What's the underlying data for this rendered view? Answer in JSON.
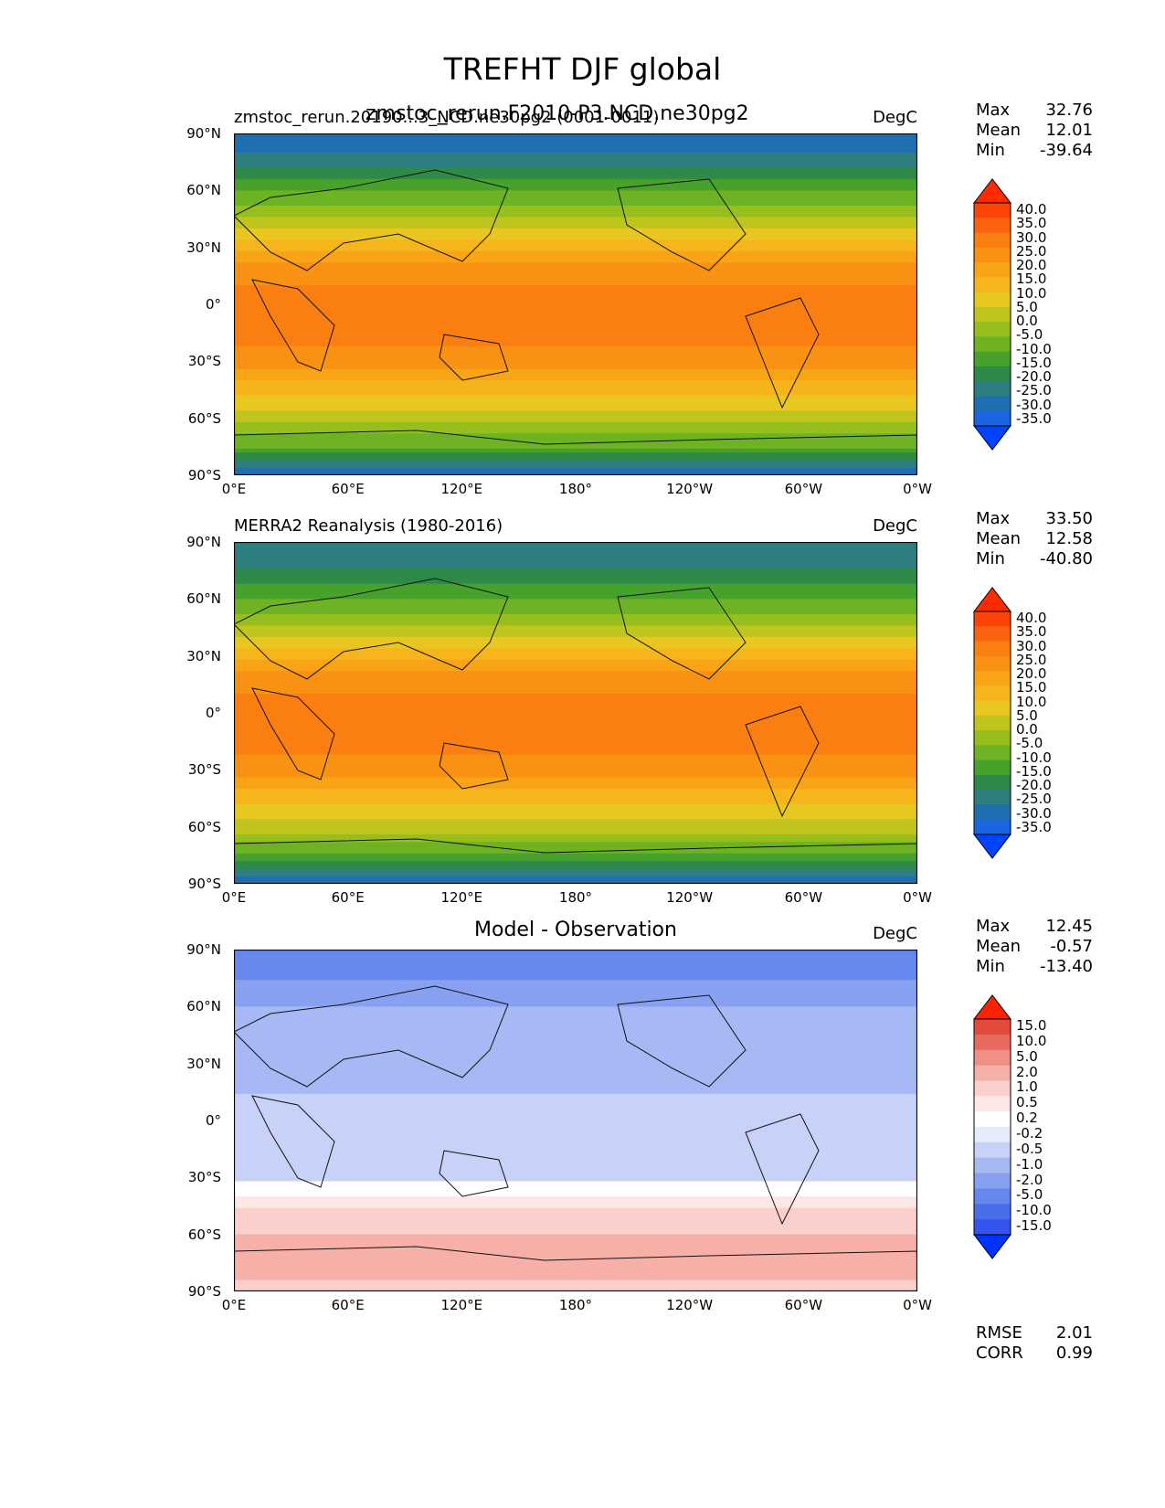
{
  "title": "TREFHT DJF global",
  "lat_ticks": [
    "90°N",
    "60°N",
    "30°N",
    "0°",
    "30°S",
    "60°S",
    "90°S"
  ],
  "lon_ticks": [
    "0°E",
    "60°E",
    "120°E",
    "180°",
    "120°W",
    "60°W",
    "0°W"
  ],
  "panels": [
    {
      "subtitle_left": "zmstoc_rerun.20190...3_NCD.ne30pg2 (0001-0011)",
      "subtitle_overlap": "zmstoc_rerun.F2010-P3.NCD.ne30pg2",
      "subtitle_center": "",
      "units": "DegC",
      "stats": [
        {
          "label": "Max",
          "value": "32.76"
        },
        {
          "label": "Mean",
          "value": "12.01"
        },
        {
          "label": "Min",
          "value": "-39.64"
        }
      ],
      "colorbar_labels": [
        "40.0",
        "35.0",
        "30.0",
        "25.0",
        "20.0",
        "15.0",
        "10.0",
        "5.0",
        "0.0",
        "-5.0",
        "-10.0",
        "-15.0",
        "-20.0",
        "-25.0",
        "-30.0",
        "-35.0"
      ]
    },
    {
      "subtitle_left": "MERRA2 Reanalysis (1980-2016)",
      "subtitle_overlap": "",
      "subtitle_center": "",
      "units": "DegC",
      "stats": [
        {
          "label": "Max",
          "value": "33.50"
        },
        {
          "label": "Mean",
          "value": "12.58"
        },
        {
          "label": "Min",
          "value": "-40.80"
        }
      ],
      "colorbar_labels": [
        "40.0",
        "35.0",
        "30.0",
        "25.0",
        "20.0",
        "15.0",
        "10.0",
        "5.0",
        "0.0",
        "-5.0",
        "-10.0",
        "-15.0",
        "-20.0",
        "-25.0",
        "-30.0",
        "-35.0"
      ]
    },
    {
      "subtitle_left": "",
      "subtitle_overlap": "",
      "subtitle_center": "Model - Observation",
      "units": "DegC",
      "stats": [
        {
          "label": "Max",
          "value": "12.45"
        },
        {
          "label": "Mean",
          "value": "-0.57"
        },
        {
          "label": "Min",
          "value": "-13.40"
        }
      ],
      "colorbar_labels": [
        "15.0",
        "10.0",
        "5.0",
        "2.0",
        "1.0",
        "0.5",
        "0.2",
        "-0.2",
        "-0.5",
        "-1.0",
        "-2.0",
        "-5.0",
        "-10.0",
        "-15.0"
      ],
      "extra_stats": [
        {
          "label": "RMSE",
          "value": "2.01"
        },
        {
          "label": "CORR",
          "value": "0.99"
        }
      ]
    }
  ],
  "colors": {
    "temp_scale": [
      "#0044ff",
      "#1a66e0",
      "#1f6fb0",
      "#2e7f7f",
      "#2f8a4a",
      "#46a22a",
      "#6db323",
      "#96bf1e",
      "#c0c51e",
      "#e7c720",
      "#f6b51a",
      "#f8a416",
      "#f99112",
      "#fa7e10",
      "#fb620d",
      "#fb430a",
      "#ff2a00"
    ],
    "diff_scale": [
      "#0033ff",
      "#3355ee",
      "#4a6ee8",
      "#6688ee",
      "#88a0f0",
      "#a8b8f4",
      "#c8d2f8",
      "#e6ecfb",
      "#ffffff",
      "#fde8e6",
      "#fbd0cc",
      "#f6b0a8",
      "#f08f85",
      "#e86a5e",
      "#e24a3c",
      "#ff2200"
    ]
  },
  "chart_data": [
    {
      "type": "heatmap",
      "title": "zmstoc_rerun.F2010-P3.NCD.ne30pg2",
      "units": "DegC",
      "x_ticks": [
        "0°E",
        "60°E",
        "120°E",
        "180°",
        "120°W",
        "60°W",
        "0°W"
      ],
      "y_ticks": [
        "90°N",
        "60°N",
        "30°N",
        "0°",
        "30°S",
        "60°S",
        "90°S"
      ],
      "xlim": [
        0,
        360
      ],
      "ylim": [
        -90,
        90
      ],
      "stats": {
        "max": 32.76,
        "mean": 12.01,
        "min": -39.64
      },
      "colorbar_levels": [
        -35,
        -30,
        -25,
        -20,
        -15,
        -10,
        -5,
        0,
        5,
        10,
        15,
        20,
        25,
        30,
        35,
        40
      ],
      "zonal_profile_approx": {
        "lat": [
          90,
          75,
          60,
          45,
          30,
          15,
          0,
          -15,
          -30,
          -45,
          -60,
          -75,
          -90
        ],
        "value": [
          -30,
          -22,
          -10,
          0,
          14,
          24,
          27,
          27,
          22,
          12,
          2,
          -10,
          -30
        ]
      }
    },
    {
      "type": "heatmap",
      "title": "MERRA2 Reanalysis (1980-2016)",
      "units": "DegC",
      "x_ticks": [
        "0°E",
        "60°E",
        "120°E",
        "180°",
        "120°W",
        "60°W",
        "0°W"
      ],
      "y_ticks": [
        "90°N",
        "60°N",
        "30°N",
        "0°",
        "30°S",
        "60°S",
        "90°S"
      ],
      "xlim": [
        0,
        360
      ],
      "ylim": [
        -90,
        90
      ],
      "stats": {
        "max": 33.5,
        "mean": 12.58,
        "min": -40.8
      },
      "colorbar_levels": [
        -35,
        -30,
        -25,
        -20,
        -15,
        -10,
        -5,
        0,
        5,
        10,
        15,
        20,
        25,
        30,
        35,
        40
      ],
      "zonal_profile_approx": {
        "lat": [
          90,
          75,
          60,
          45,
          30,
          15,
          0,
          -15,
          -30,
          -45,
          -60,
          -75,
          -90
        ],
        "value": [
          -25,
          -20,
          -10,
          0,
          14,
          24,
          27,
          27,
          22,
          12,
          3,
          -12,
          -30
        ]
      }
    },
    {
      "type": "heatmap",
      "title": "Model - Observation",
      "units": "DegC",
      "x_ticks": [
        "0°E",
        "60°E",
        "120°E",
        "180°",
        "120°W",
        "60°W",
        "0°W"
      ],
      "y_ticks": [
        "90°N",
        "60°N",
        "30°N",
        "0°",
        "30°S",
        "60°S",
        "90°S"
      ],
      "xlim": [
        0,
        360
      ],
      "ylim": [
        -90,
        90
      ],
      "stats": {
        "max": 12.45,
        "mean": -0.57,
        "min": -13.4,
        "rmse": 2.01,
        "corr": 0.99
      },
      "colorbar_levels": [
        -15,
        -10,
        -5,
        -2,
        -1,
        -0.5,
        -0.2,
        0.2,
        0.5,
        1,
        2,
        5,
        10,
        15
      ],
      "zonal_profile_approx": {
        "lat": [
          90,
          75,
          60,
          45,
          30,
          15,
          0,
          -15,
          -30,
          -45,
          -60,
          -75,
          -90
        ],
        "value": [
          -5,
          -2,
          -1,
          -0.5,
          -1,
          -0.5,
          -0.3,
          -0.3,
          -0.3,
          0.5,
          1,
          2,
          0.5
        ]
      }
    }
  ]
}
